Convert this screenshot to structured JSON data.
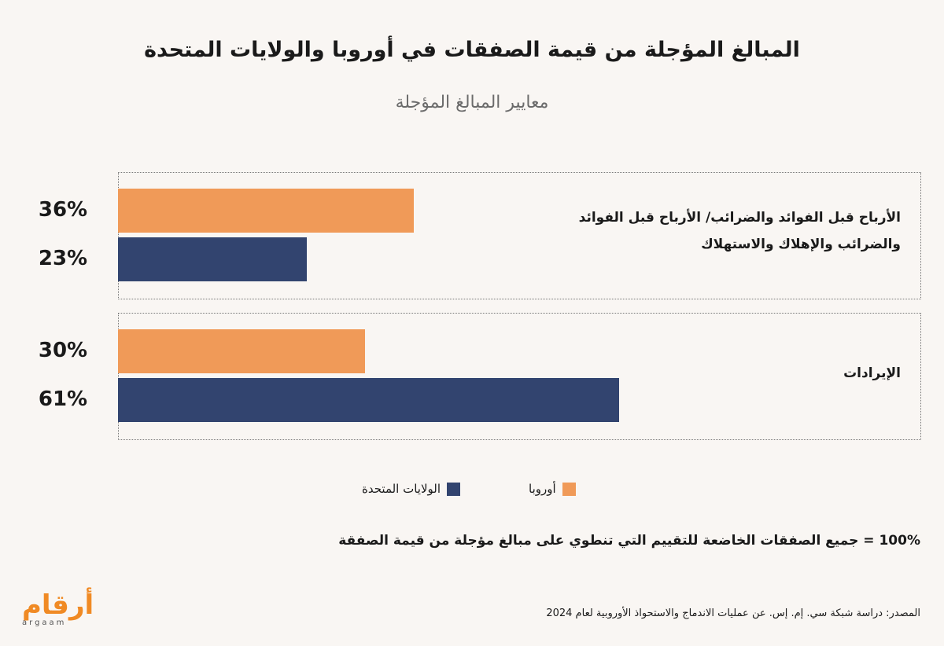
{
  "chart_data": {
    "type": "bar",
    "orientation": "horizontal",
    "title": "المبالغ المؤجلة من قيمة الصفقات في أوروبا والولايات المتحدة",
    "subtitle": "معايير المبالغ المؤجلة",
    "categories": [
      "الأرباح قبل الفوائد والضرائب/ الأرباح قبل الفوائد والضرائب والإهلاك والاستهلاك",
      "الإيرادات"
    ],
    "series": [
      {
        "name": "أوروبا",
        "color": "#f09a58",
        "values": [
          36,
          30
        ],
        "labels": [
          "36%",
          "30%"
        ]
      },
      {
        "name": "الولايات المتحدة",
        "color": "#32446f",
        "values": [
          23,
          61
        ],
        "labels": [
          "23%",
          "61%"
        ]
      }
    ],
    "xlim": [
      0,
      100
    ],
    "grid": false,
    "legend_position": "bottom"
  },
  "note": "100% = جميع الصفقات الخاضعة للتقييم التي تنطوي على مبالغ مؤجلة من قيمة الصفقة",
  "source": "المصدر: دراسة شبكة سي. إم. إس. عن عمليات الاندماج والاستحواذ الأوروبية لعام 2024",
  "logo": {
    "arabic": "أرقام",
    "latin": "argaam"
  }
}
